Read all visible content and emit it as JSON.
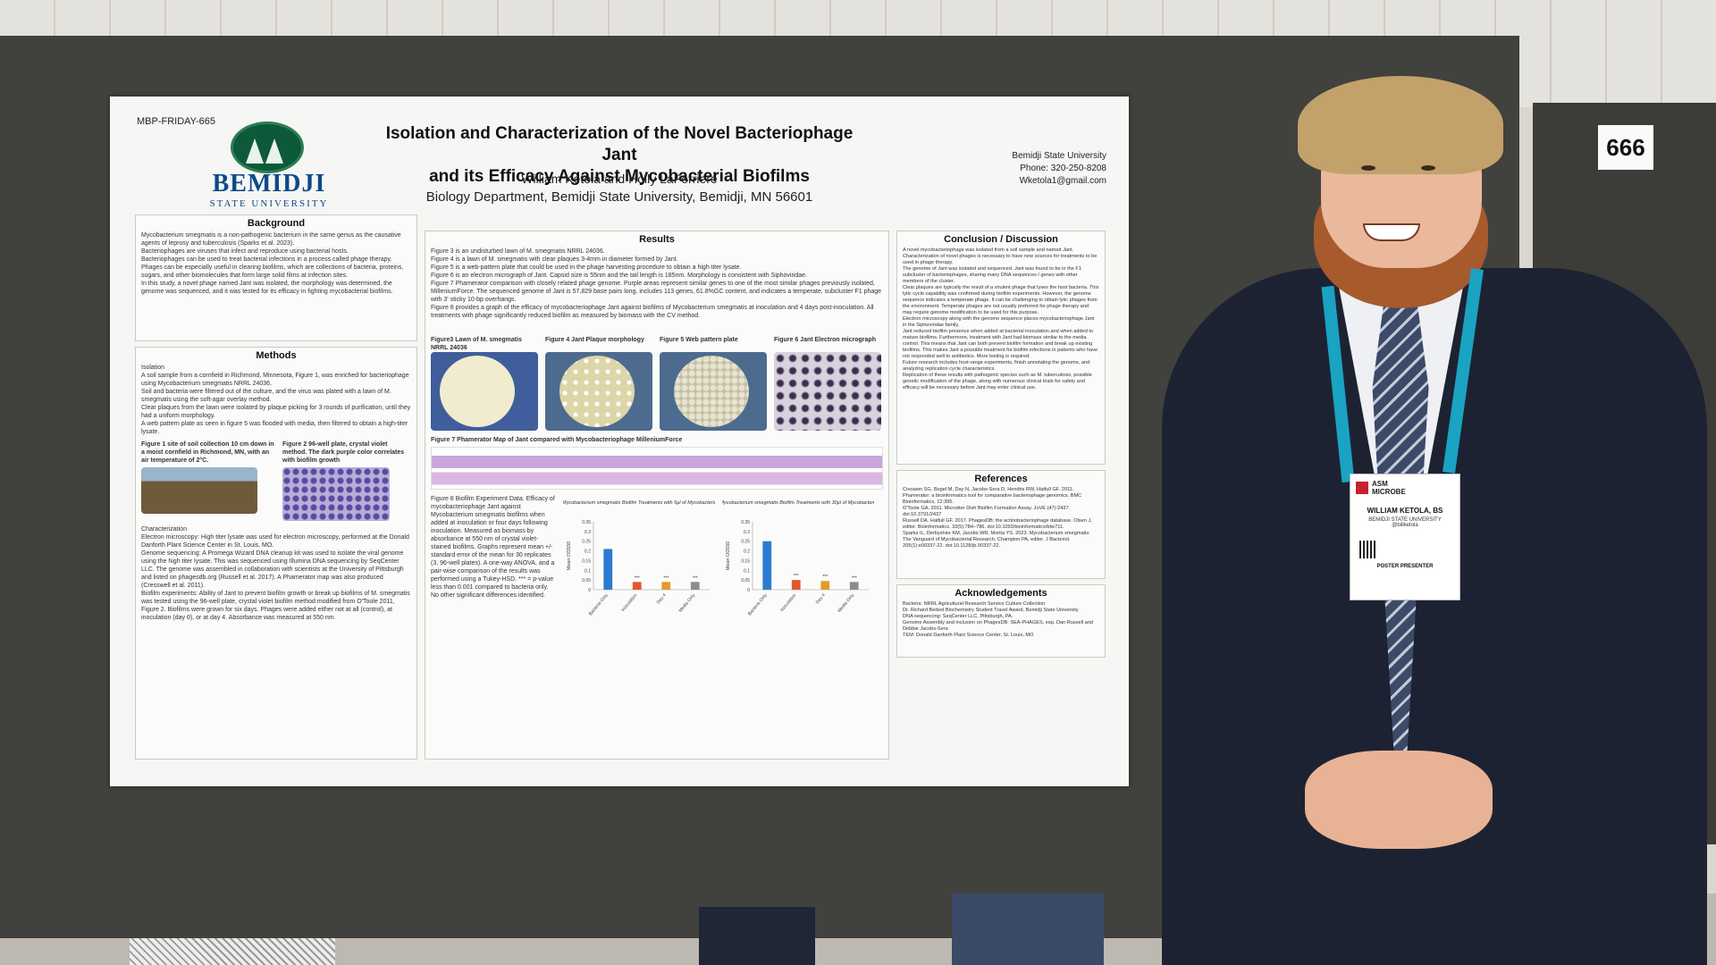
{
  "scene": {
    "booth_number": "666",
    "colors": {
      "board": "#41413e",
      "poster": "#f6f6f4",
      "university_blue": "#0d4a88",
      "logo_green": "#0d5a3a",
      "lanyard": "#1aa3c3",
      "suit": "#1d2233"
    }
  },
  "poster": {
    "id": "MBP-FRIDAY-665",
    "university_name": "BEMIDJI",
    "university_sub": "STATE UNIVERSITY",
    "title_line1": "Isolation and Characterization of the Novel Bacteriophage Jant",
    "title_line2": "and its Efficacy Against Mycobacterial Biofilms",
    "authors": "William Ketola and Holly LaFerriere",
    "department": "Biology Department, Bemidji State University, Bemidji, MN 56601",
    "contact": [
      "Bemidji State University",
      "Phone: 320-250-8208",
      "Wketola1@gmail.com"
    ],
    "sections": {
      "background": "Background",
      "methods": "Methods",
      "results": "Results",
      "conclusion": "Conclusion / Discussion",
      "references": "References",
      "acknowledgements": "Acknowledgements"
    },
    "background_items": [
      "Mycobacterium smegmatis is a non-pathogenic bacterium in the same genus as the causative agents of leprosy and tuberculosis (Sparks et al. 2023).",
      "Bacteriophages are viruses that infect and reproduce using bacterial hosts.",
      "Bacteriophages can be used to treat bacterial infections in a process called phage therapy.",
      "Phages can be especially useful in clearing biofilms, which are collections of bacteria, proteins, sugars, and other biomolecules that form large solid films at infection sites.",
      "In this study, a novel phage named Jant was isolated, the morphology was determined, the genome was sequenced, and it was tested for its efficacy in fighting mycobacterial biofilms."
    ],
    "methods_isolation_label": "Isolation",
    "methods_items": [
      "A soil sample from a cornfield in Richmond, Minnesota, Figure 1, was enriched for bacteriophage using Mycobacterium smegmatis NRRL 24036.",
      "Soil and bacteria were filtered out of the culture, and the virus was plated with a lawn of M. smegmatis using the soft-agar overlay method.",
      "Clear plaques from the lawn were isolated by plaque picking for 3 rounds of purification, until they had a uniform morphology.",
      "A web pattern plate as seen in figure 5 was flooded with media, then filtered to obtain a high-titer lysate."
    ],
    "fig1_caption": "Figure 1 site of soil collection 10 cm down in a moist cornfield in Richmond, MN, with an air temperature of 2°C.",
    "fig2_caption": "Figure 2 96-well plate, crystal violet method. The dark purple color correlates with biofilm growth",
    "characterization_label": "Characterization",
    "characterization_items": [
      "Electron microscopy: High titer lysate was used for electron microscopy, performed at the Donald Danforth Plant Science Center in St. Louis, MO.",
      "Genome sequencing: A Promega Wizard DNA cleanup kit was used to isolate the viral genome using the high titer lysate. This was sequenced using Illumina DNA sequencing by SeqCenter LLC. The genome was assembled in collaboration with scientists at the University of Pittsburgh and listed on phagesdb.org (Russell et al. 2017). A Phamerator map was also produced (Cresswell et al. 2011).",
      "Biofilm experiments: Ability of Jant to prevent biofilm growth or break up biofilms of M. smegmatis was tested using the 96-well plate, crystal violet biofilm method modified from O'Toole 2011, Figure 2. Biofilms were grown for six days. Phages were added either not at all (control), at inoculation (day 0), or at day 4. Absorbance was measured at 550 nm."
    ],
    "results_items": [
      "Figure 3 is an undisturbed lawn of M. smegmatis NRRL 24036.",
      "Figure 4 is a lawn of M. smegmatis with clear plaques 3-4mm in diameter formed by Jant.",
      "Figure 5 is a web-pattern plate that could be used in the phage harvesting procedure to obtain a high titer lysate.",
      "Figure 6 is an electron micrograph of Jant. Capsid size is 55nm and the tail length is 185nm. Morphology is consistent with Siphoviridae.",
      "Figure 7 Phamerator comparison with closely related phage genome. Purple areas represent similar genes to one of the most similar phages previously isolated, MilleniumForce. The sequenced genome of Jant is 57,829 base pairs long, includes 113 genes, 61.8%GC content, and indicates a temperate, subcluster F1 phage with 3' sticky 10-bp overhangs.",
      "Figure 8 provides a graph of the efficacy of mycobacteriophage Jant against biofilms of Mycobacterium smegmatis at inoculation and 4 days post-inoculation. All treatments with phage significantly reduced biofilm as measured by biomass with the CV method."
    ],
    "figure_titles": [
      "Figure3 Lawn of M. smegmatis NRRL 24036",
      "Figure 4 Jant Plaque morphology",
      "Figure 5 Web pattern plate",
      "Figure 6 Jant Electron micrograph"
    ],
    "fig7_title": "Figure 7 Phamerator Map of Jant compared with Mycobacteriophage MilleniumForce",
    "fig8_caption": "Figure 8 Biofilm Experiment Data. Efficacy of mycobacteriophage Jant against Mycobacterium smegmatis biofilms when added at inoculation or four days following inoculation. Measured as biomass by absorbance at 550 nm of crystal violet-stained biofilms. Graphs represent mean +/- standard error of the mean for 30 replicates (3, 96-well plates). A one-way ANOVA, and a pair-wise comparison of the results was performed using a Tukey-HSD. *** = p-value less than 0.001 compared to bacteria only. No other significant differences identified.",
    "conclusion_items": [
      "A novel mycobacteriophage was isolated from a soil sample and named Jant.",
      "Characterization of novel phages is necessary to have new sources for treatments to be used in phage therapy.",
      "The genome of Jant was isolated and sequenced. Jant was found to be in the F1 subcluster of bacteriophages, sharing many DNA sequences / genes with other members of the cluster.",
      "Clear plaques are typically the result of a virulent phage that lyses the host bacteria. This lytic cycle capability was confirmed during biofilm experiments. However, the genome sequence indicates a temperate phage. It can be challenging to obtain lytic phages from the environment. Temperate phages are not usually preferred for phage therapy and may require genome modification to be used for this purpose.",
      "Electron microscopy along with the genome sequence places mycobacteriophage Jant in the Siphoviridae family.",
      "Jant reduced biofilm presence when added at bacterial inoculation and when added to mature biofilms. Furthermore, treatment with Jant had biomass similar to the media control. This means that Jant can both prevent biofilm formation and break up existing biofilms. This makes Jant a possible treatment for biofilm infections in patients who have not responded well to antibiotics. More testing is required.",
      "Future research includes host-range experiments, finish annotating the genome, and analyzing replication cycle characteristics.",
      "Replication of these results with pathogenic species such as M. tuberculosis, possible genetic modification of the phage, along with numerous clinical trials for safety and efficacy will be necessary before Jant may enter clinical use."
    ],
    "references_items": [
      "Cresawn SG, Bogel M, Day N, Jacobs-Sera D, Hendrix RW, Hatfull GF. 2011. Phamerator: a bioinformatics tool for comparative bacteriophage genomics. BMC Bioinformatics, 12:395.",
      "O'Toole GA. 2011. Microtiter Dish Biofilm Formation Assay. JoVE (47):2437. doi:10.3791/2437",
      "Russell DA, Hatfull GF. 2017. PhagesDB: the actinobacteriophage database. Olsen J, editor. Bioinformatics. 33(5):784–786. doi:10.1093/bioinformatics/btw711.",
      "Sparks IL, Derbyshire KM, Jacobs WR, Morita YS. 2023. Mycobacterium smegmatis: The Vanguard of Mycobacterial Research. Champion PA, editor. J Bacteriol. 205(1):e00337-22. doi:10.1128/jb.00337-22."
    ],
    "acknowledgements_items": [
      "Bacteria: NRRL Agricultural Research Service Culture Collection",
      "Dr. Richard Beitzel Biochemistry Student Travel Award, Bemidji State University",
      "DNA sequencing: SeqCenter LLC, Pittsburgh, PA.",
      "Genome Assembly and inclusion on PhagesDB: SEA-PHAGES, esp. Dan Russell and Debbie Jacobs-Sera",
      "TEM: Donald Danforth Plant Science Center, St. Louis, MO"
    ]
  },
  "chart_data": [
    {
      "type": "bar",
      "title": "Mycobacterium smegmatis Biofilm Treatments with 5µl of Mycobacteriophage Jant",
      "ylabel": "Mean OD550",
      "ylim": [
        0,
        0.35
      ],
      "yticks": [
        "0.35",
        "0.3",
        "0.25",
        "0.2",
        "0.15",
        "0.1",
        "0.05",
        "0"
      ],
      "categories": [
        "Bacteria Only",
        "Inoculation",
        "Day 4",
        "Media Only"
      ],
      "values": [
        0.21,
        0.04,
        0.04,
        0.04
      ],
      "colors": [
        "#2a7bd0",
        "#e2572c",
        "#e29a2c",
        "#8c8c8c"
      ],
      "significance": [
        "",
        "***",
        "***",
        "***"
      ]
    },
    {
      "type": "bar",
      "title": "Mycobacterium smegmatis Biofilm Treatments with 30µl of Mycobacteriophage Jant",
      "ylabel": "Mean OD550",
      "ylim": [
        0,
        0.35
      ],
      "yticks": [
        "0.35",
        "0.3",
        "0.25",
        "0.2",
        "0.15",
        "0.1",
        "0.05",
        "0"
      ],
      "categories": [
        "Bacteria Only",
        "Inoculation",
        "Day 4",
        "Media Only"
      ],
      "values": [
        0.25,
        0.05,
        0.045,
        0.04
      ],
      "colors": [
        "#2a7bd0",
        "#e2572c",
        "#e29a2c",
        "#8c8c8c"
      ],
      "significance": [
        "",
        "***",
        "***",
        "***"
      ]
    }
  ],
  "badge": {
    "org_line1": "ASM",
    "org_line2": "MICROBE",
    "name": "WILLIAM KETOLA, BS",
    "affiliation": "BEMIDJI STATE UNIVERSITY",
    "handle": "@billketola",
    "role": "POSTER PRESENTER"
  }
}
